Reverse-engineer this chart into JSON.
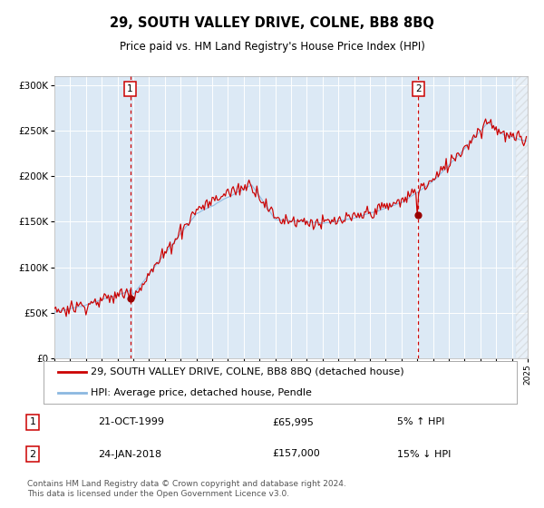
{
  "title": "29, SOUTH VALLEY DRIVE, COLNE, BB8 8BQ",
  "subtitle": "Price paid vs. HM Land Registry's House Price Index (HPI)",
  "background_color": "#ffffff",
  "plot_bg_color": "#dce9f5",
  "hpi_color": "#8bb8e0",
  "price_color": "#cc0000",
  "marker_color": "#990000",
  "dashed_line_color": "#cc0000",
  "ylim": [
    0,
    310000
  ],
  "yticks": [
    0,
    50000,
    100000,
    150000,
    200000,
    250000,
    300000
  ],
  "ytick_labels": [
    "£0",
    "£50K",
    "£100K",
    "£150K",
    "£200K",
    "£250K",
    "£300K"
  ],
  "year_start": 1995,
  "year_end": 2025,
  "sale1_year": 1999.8,
  "sale1_price": 65995,
  "sale1_label": "1",
  "sale1_date": "21-OCT-1999",
  "sale1_amount": "£65,995",
  "sale1_hpi": "5% ↑ HPI",
  "sale2_year": 2018.07,
  "sale2_price": 157000,
  "sale2_label": "2",
  "sale2_date": "24-JAN-2018",
  "sale2_amount": "£157,000",
  "sale2_hpi": "15% ↓ HPI",
  "legend_line1": "29, SOUTH VALLEY DRIVE, COLNE, BB8 8BQ (detached house)",
  "legend_line2": "HPI: Average price, detached house, Pendle",
  "footer": "Contains HM Land Registry data © Crown copyright and database right 2024.\nThis data is licensed under the Open Government Licence v3.0.",
  "title_fontsize": 10.5,
  "subtitle_fontsize": 8.5,
  "axis_fontsize": 7.5,
  "legend_fontsize": 8,
  "footer_fontsize": 6.5
}
